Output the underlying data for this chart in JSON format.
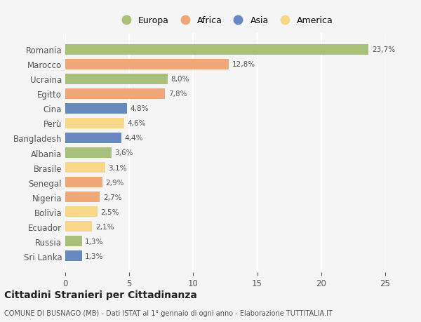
{
  "countries": [
    "Romania",
    "Marocco",
    "Ucraina",
    "Egitto",
    "Cina",
    "Perù",
    "Bangladesh",
    "Albania",
    "Brasile",
    "Senegal",
    "Nigeria",
    "Bolivia",
    "Ecuador",
    "Russia",
    "Sri Lanka"
  ],
  "values": [
    23.7,
    12.8,
    8.0,
    7.8,
    4.8,
    4.6,
    4.4,
    3.6,
    3.1,
    2.9,
    2.7,
    2.5,
    2.1,
    1.3,
    1.3
  ],
  "labels": [
    "23,7%",
    "12,8%",
    "8,0%",
    "7,8%",
    "4,8%",
    "4,6%",
    "4,4%",
    "3,6%",
    "3,1%",
    "2,9%",
    "2,7%",
    "2,5%",
    "2,1%",
    "1,3%",
    "1,3%"
  ],
  "colors": [
    "#a8c07a",
    "#f0a878",
    "#a8c07a",
    "#f0a878",
    "#6888c0",
    "#f8d888",
    "#6888c0",
    "#a8c07a",
    "#f8d888",
    "#f0a878",
    "#f0a878",
    "#f8d888",
    "#f8d888",
    "#a8c07a",
    "#6888c0"
  ],
  "continent_colors": {
    "Europa": "#a8c07a",
    "Africa": "#f0a878",
    "Asia": "#6888c0",
    "America": "#f8d888"
  },
  "title": "Cittadini Stranieri per Cittadinanza",
  "subtitle": "COMUNE DI BUSNAGO (MB) - Dati ISTAT al 1° gennaio di ogni anno - Elaborazione TUTTITALIA.IT",
  "xlim": [
    0,
    25
  ],
  "xticks": [
    0,
    5,
    10,
    15,
    20,
    25
  ],
  "bg_color": "#f5f5f5",
  "grid_color": "#ffffff",
  "bar_height": 0.72,
  "text_color": "#555555"
}
